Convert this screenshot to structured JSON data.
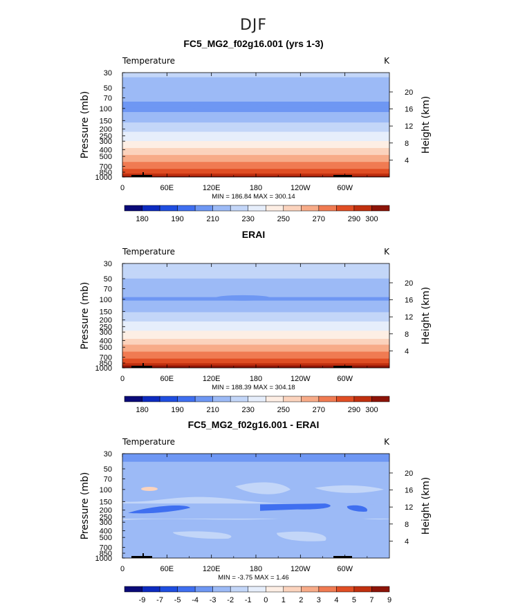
{
  "figure": {
    "title": "DJF"
  },
  "colors": {
    "temperature": [
      "#0a0a78",
      "#0d2bc0",
      "#1f4ee0",
      "#3f6ff0",
      "#6e97f3",
      "#9cbaf6",
      "#c3d6f8",
      "#e6eefb",
      "#fdeee4",
      "#fbd3bd",
      "#f7ab88",
      "#f07b52",
      "#e04e24",
      "#c0300f",
      "#8c1408"
    ],
    "difference": [
      "#0a0a78",
      "#0d2bc0",
      "#1f4ee0",
      "#3f6ff0",
      "#6e97f3",
      "#9cbaf6",
      "#c3d6f8",
      "#e6eefb",
      "#fdeee4",
      "#fbd3bd",
      "#f7ab88",
      "#f07b52",
      "#e04e24",
      "#c0300f",
      "#8c1408"
    ]
  },
  "chart_data": [
    {
      "type": "heatmap",
      "title": "FC5_MG2_f02g16.001 (yrs 1-3)",
      "variable_label": "Temperature",
      "units_label": "K",
      "ylabel": "Pressure (mb)",
      "y2label": "Height (km)",
      "x_ticks": [
        "0",
        "60E",
        "120E",
        "180",
        "120W",
        "60W"
      ],
      "x_tick_values": [
        0,
        60,
        120,
        180,
        240,
        300
      ],
      "xlim": [
        0,
        360
      ],
      "y_ticks": [
        "30",
        "50",
        "70",
        "100",
        "150",
        "200",
        "250",
        "300",
        "400",
        "500",
        "700",
        "850",
        "1000"
      ],
      "y_tick_values": [
        30,
        50,
        70,
        100,
        150,
        200,
        250,
        300,
        400,
        500,
        700,
        850,
        1000
      ],
      "ylim": [
        1000,
        30
      ],
      "height_ticks": [
        "4",
        "8",
        "12",
        "16",
        "20"
      ],
      "height_values": [
        4,
        8,
        12,
        16,
        20
      ],
      "stats": "MIN = 186.84  MAX = 300.14",
      "colorbar_labels": [
        "180",
        "190",
        "210",
        "230",
        "250",
        "270",
        "290",
        "300"
      ],
      "profile_levels": [
        30,
        50,
        70,
        100,
        150,
        200,
        250,
        300,
        400,
        500,
        700,
        850,
        1000
      ],
      "profile_values": [
        212,
        206,
        202,
        197,
        208,
        218,
        224,
        230,
        242,
        252,
        266,
        276,
        292
      ],
      "cold_core": {
        "lon": [
          90,
          200
        ],
        "level": 100,
        "value": 191.5
      },
      "cold_core2": {
        "lon": [
          255,
          270
        ],
        "level": 100,
        "value": 192.5
      }
    },
    {
      "type": "heatmap",
      "title": "ERAI",
      "variable_label": "Temperature",
      "units_label": "K",
      "ylabel": "Pressure (mb)",
      "y2label": "Height (km)",
      "x_ticks": [
        "0",
        "60E",
        "120E",
        "180",
        "120W",
        "60W"
      ],
      "x_tick_values": [
        0,
        60,
        120,
        180,
        240,
        300
      ],
      "xlim": [
        0,
        360
      ],
      "y_ticks": [
        "30",
        "50",
        "70",
        "100",
        "150",
        "200",
        "250",
        "300",
        "400",
        "500",
        "700",
        "850",
        "1000"
      ],
      "y_tick_values": [
        30,
        50,
        70,
        100,
        150,
        200,
        250,
        300,
        400,
        500,
        700,
        850,
        1000
      ],
      "ylim": [
        1000,
        30
      ],
      "height_ticks": [
        "4",
        "8",
        "12",
        "16",
        "20"
      ],
      "height_values": [
        4,
        8,
        12,
        16,
        20
      ],
      "stats": "MIN = 188.39  MAX = 304.18",
      "colorbar_labels": [
        "180",
        "190",
        "210",
        "230",
        "250",
        "270",
        "290",
        "300"
      ],
      "profile_levels": [
        30,
        50,
        70,
        100,
        150,
        200,
        250,
        300,
        400,
        500,
        700,
        850,
        1000
      ],
      "profile_values": [
        216,
        210,
        205,
        199,
        209,
        219,
        225,
        231,
        243,
        254,
        268,
        280,
        296
      ],
      "cold_core": {
        "lon": [
          125,
          200
        ],
        "level": 100,
        "value": 192
      }
    },
    {
      "type": "heatmap",
      "title": "FC5_MG2_f02g16.001 - ERAI",
      "variable_label": "Temperature",
      "units_label": "K",
      "ylabel": "Pressure (mb)",
      "y2label": "Height (km)",
      "x_ticks": [
        "0",
        "60E",
        "120E",
        "180",
        "120W",
        "60W"
      ],
      "x_tick_values": [
        0,
        60,
        120,
        180,
        240,
        300
      ],
      "xlim": [
        0,
        360
      ],
      "y_ticks": [
        "30",
        "50",
        "70",
        "100",
        "150",
        "200",
        "250",
        "300",
        "400",
        "500",
        "700",
        "850",
        "1000"
      ],
      "y_tick_values": [
        30,
        50,
        70,
        100,
        150,
        200,
        250,
        300,
        400,
        500,
        700,
        850,
        1000
      ],
      "ylim": [
        1000,
        30
      ],
      "height_ticks": [
        "4",
        "8",
        "12",
        "16",
        "20"
      ],
      "height_values": [
        4,
        8,
        12,
        16,
        20
      ],
      "stats": "MIN =  -3.75  MAX =   1.46",
      "colorbar_labels": [
        "-9",
        "-7",
        "-5",
        "-4",
        "-3",
        "-2",
        "-1",
        "0",
        "1",
        "2",
        "3",
        "4",
        "5",
        "7",
        "9"
      ],
      "profile_levels": [
        30,
        50,
        70,
        100,
        150,
        200,
        250,
        300,
        400,
        500,
        700,
        850,
        1000
      ],
      "profile_values": [
        -3.5,
        -2.6,
        -2.4,
        -2.1,
        -1.8,
        -2.6,
        -2.2,
        -1.6,
        -1.4,
        -1.3,
        -1.6,
        -1.5,
        -1.4
      ]
    }
  ]
}
